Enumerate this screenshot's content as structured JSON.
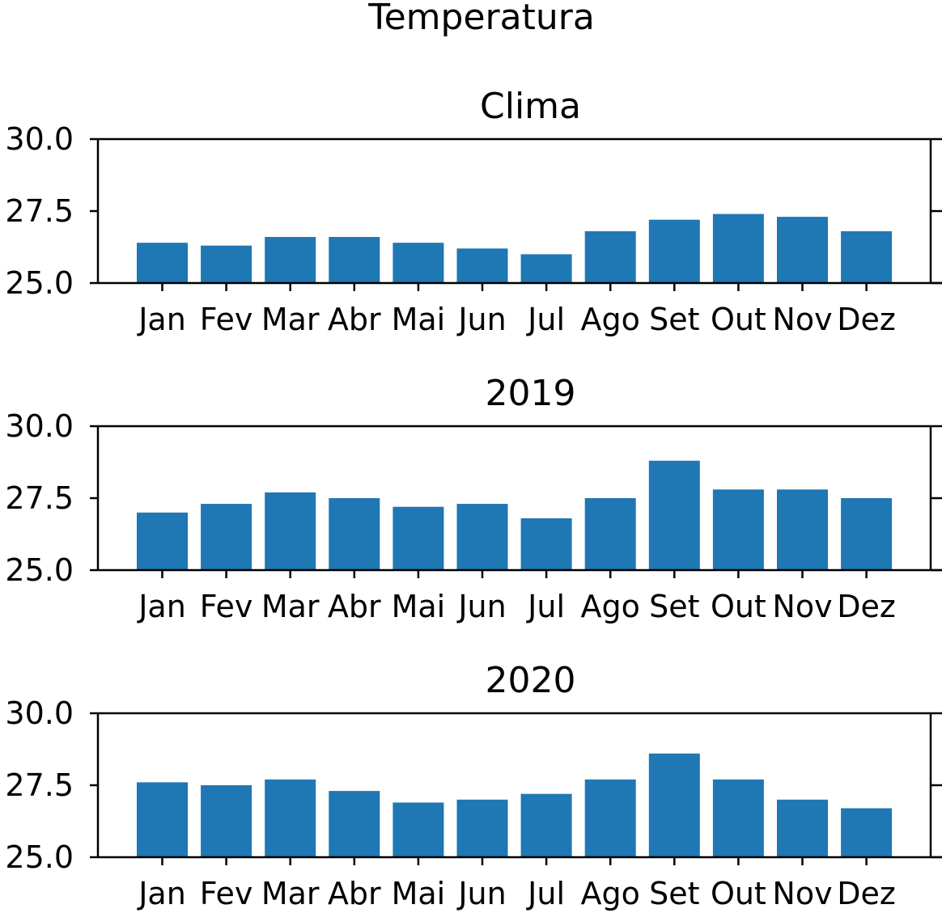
{
  "figure": {
    "title": "Temperatura"
  },
  "chart_data": [
    {
      "type": "bar",
      "title": "Clima",
      "categories": [
        "Jan",
        "Fev",
        "Mar",
        "Abr",
        "Mai",
        "Jun",
        "Jul",
        "Ago",
        "Set",
        "Out",
        "Nov",
        "Dez"
      ],
      "values": [
        26.4,
        26.3,
        26.6,
        26.6,
        26.4,
        26.2,
        26.0,
        26.8,
        27.2,
        27.4,
        27.3,
        26.8
      ],
      "ylim": [
        25.0,
        30.0
      ],
      "yticks": [
        "25.0",
        "27.5",
        "30.0"
      ],
      "grid": false,
      "bar_color": "#1f77b4"
    },
    {
      "type": "bar",
      "title": "2019",
      "categories": [
        "Jan",
        "Fev",
        "Mar",
        "Abr",
        "Mai",
        "Jun",
        "Jul",
        "Ago",
        "Set",
        "Out",
        "Nov",
        "Dez"
      ],
      "values": [
        27.0,
        27.3,
        27.7,
        27.5,
        27.2,
        27.3,
        26.8,
        27.5,
        28.8,
        27.8,
        27.8,
        27.5
      ],
      "ylim": [
        25.0,
        30.0
      ],
      "yticks": [
        "25.0",
        "27.5",
        "30.0"
      ],
      "grid": false,
      "bar_color": "#1f77b4"
    },
    {
      "type": "bar",
      "title": "2020",
      "categories": [
        "Jan",
        "Fev",
        "Mar",
        "Abr",
        "Mai",
        "Jun",
        "Jul",
        "Ago",
        "Set",
        "Out",
        "Nov",
        "Dez"
      ],
      "values": [
        27.6,
        27.5,
        27.7,
        27.3,
        26.9,
        27.0,
        27.2,
        27.7,
        28.6,
        27.7,
        27.0,
        26.7
      ],
      "ylim": [
        25.0,
        30.0
      ],
      "yticks": [
        "25.0",
        "27.5",
        "30.0"
      ],
      "grid": false,
      "bar_color": "#1f77b4"
    }
  ]
}
